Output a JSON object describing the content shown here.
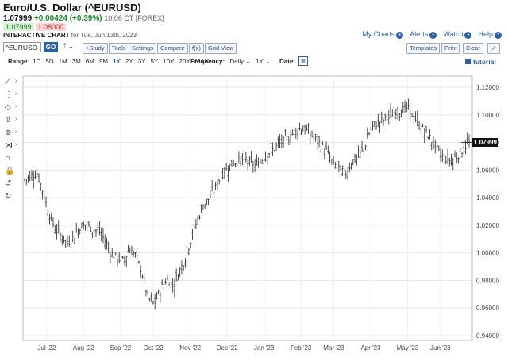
{
  "header": {
    "title": "Euro/U.S. Dollar (^EURUSD)",
    "last": "1.07999",
    "change": "+0.00424 (+0.39%)",
    "meta": "10:06 CT [FOREX]",
    "bid": "1.07999",
    "ask": "1.08000",
    "chart_label": "INTERACTIVE CHART",
    "chart_date": "for Tue, Jun 13th, 2023"
  },
  "top_links": {
    "my_charts": "My Charts",
    "alerts": "Alerts",
    "watch": "Watch",
    "help": "Help"
  },
  "toolbar": {
    "symbol": "^EURUSD",
    "go": "GO",
    "study": "+Study",
    "tools": "Tools",
    "settings": "Settings",
    "compare": "Compare",
    "fx": "f(x)",
    "gridview": "Grid View",
    "templates": "Templates",
    "print": "Print",
    "clear": "Clear"
  },
  "range": {
    "label": "Range:",
    "options": [
      "1D",
      "5D",
      "1M",
      "3M",
      "6M",
      "9M",
      "1Y",
      "2Y",
      "3Y",
      "5Y",
      "10Y",
      "20Y",
      "MAX"
    ],
    "active": "1Y",
    "frequency_label": "Frequency:",
    "frequency": "Daily",
    "period": "1Y",
    "date_label": "Date:",
    "tutorial": "tutorial"
  },
  "left_tools": [
    "line-tool-icon",
    "fibonacci-tool-icon",
    "shape-tool-icon",
    "arrow-tool-icon",
    "annotation-tool-icon",
    "pattern-tool-icon",
    "magnet-icon",
    "lock-icon",
    "undo-icon",
    "redo-icon"
  ],
  "chart_data": {
    "type": "ohlc-bar",
    "title": "",
    "last_price": "1.07999",
    "y_ticks": [
      "1.12000",
      "1.10000",
      "1.08000",
      "1.06000",
      "1.04000",
      "1.02000",
      "1.00000",
      "0.98000",
      "0.96000",
      "0.94000"
    ],
    "ylim": [
      0.94,
      1.12
    ],
    "x_ticks": [
      "Jul '22",
      "Aug '22",
      "Sep '22",
      "Oct '22",
      "Nov '22",
      "Dec '22",
      "Jan '23",
      "Feb '23",
      "Mar '23",
      "Apr '23",
      "May '23",
      "Jun '23"
    ],
    "x_tick_week": [
      2.5,
      7,
      11.5,
      15.5,
      20,
      24.5,
      29,
      33.5,
      37.5,
      42,
      46.5,
      50.5
    ],
    "weeks": 54,
    "grid": true,
    "close_series": [
      1.053,
      1.056,
      1.058,
      1.044,
      1.028,
      1.017,
      1.012,
      1.007,
      1.012,
      1.019,
      1.021,
      1.017,
      1.016,
      1.009,
      1.0,
      0.996,
      0.994,
      1.003,
      0.998,
      0.986,
      0.967,
      0.963,
      0.973,
      0.981,
      0.976,
      0.986,
      0.996,
      1.011,
      1.024,
      1.035,
      1.04,
      1.048,
      1.057,
      1.062,
      1.066,
      1.067,
      1.068,
      1.063,
      1.065,
      1.071,
      1.074,
      1.078,
      1.081,
      1.084,
      1.089,
      1.091,
      1.087,
      1.083,
      1.078,
      1.073,
      1.064,
      1.061,
      1.057,
      1.066,
      1.069,
      1.076,
      1.089,
      1.094,
      1.096,
      1.098,
      1.103,
      1.103,
      1.105,
      1.099,
      1.092,
      1.087,
      1.081,
      1.073,
      1.069,
      1.067,
      1.07,
      1.075,
      1.08
    ]
  }
}
